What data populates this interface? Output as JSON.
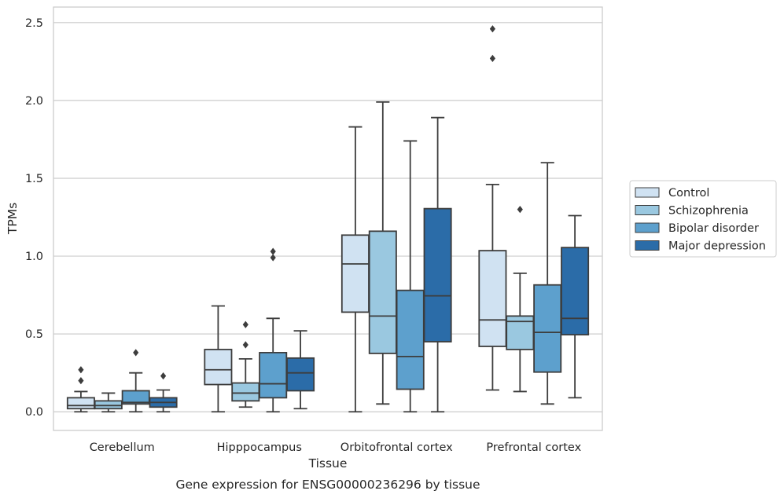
{
  "chart_data": {
    "type": "box",
    "title": "",
    "caption": "Gene expression for ENSG00000236296 by tissue",
    "xlabel": "Tissue",
    "ylabel": "TPMs",
    "ylim": [
      -0.12,
      2.6
    ],
    "yticks": [
      0.0,
      0.5,
      1.0,
      1.5,
      2.0,
      2.5
    ],
    "ytick_labels": [
      "0.0",
      "0.5",
      "1.0",
      "1.5",
      "2.0",
      "2.5"
    ],
    "grid": "horizontal",
    "legend_position": "right",
    "categories": [
      "Cerebellum",
      "Hipppocampus",
      "Orbitofrontal cortex",
      "Prefrontal cortex"
    ],
    "series": [
      {
        "name": "Control",
        "color": "#d0e2f2",
        "boxes": [
          {
            "whislo": 0.0,
            "q1": 0.02,
            "med": 0.04,
            "q3": 0.09,
            "whishi": 0.13,
            "fliers": [
              0.2,
              0.27
            ]
          },
          {
            "whislo": 0.0,
            "q1": 0.175,
            "med": 0.27,
            "q3": 0.4,
            "whishi": 0.68,
            "fliers": []
          },
          {
            "whislo": 0.0,
            "q1": 0.64,
            "med": 0.95,
            "q3": 1.135,
            "whishi": 1.83,
            "fliers": []
          },
          {
            "whislo": 0.14,
            "q1": 0.42,
            "med": 0.59,
            "q3": 1.035,
            "whishi": 1.46,
            "fliers": [
              2.27,
              2.46
            ]
          }
        ]
      },
      {
        "name": "Schizophrenia",
        "color": "#9ac8e0",
        "boxes": [
          {
            "whislo": 0.0,
            "q1": 0.02,
            "med": 0.04,
            "q3": 0.07,
            "whishi": 0.12,
            "fliers": []
          },
          {
            "whislo": 0.03,
            "q1": 0.07,
            "med": 0.12,
            "q3": 0.185,
            "whishi": 0.34,
            "fliers": [
              0.43,
              0.56
            ]
          },
          {
            "whislo": 0.05,
            "q1": 0.375,
            "med": 0.615,
            "q3": 1.16,
            "whishi": 1.99,
            "fliers": []
          },
          {
            "whislo": 0.13,
            "q1": 0.4,
            "med": 0.58,
            "q3": 0.615,
            "whishi": 0.89,
            "fliers": [
              1.3
            ]
          }
        ]
      },
      {
        "name": "Bipolar disorder",
        "color": "#5da0cd",
        "boxes": [
          {
            "whislo": 0.0,
            "q1": 0.05,
            "med": 0.06,
            "q3": 0.135,
            "whishi": 0.25,
            "fliers": [
              0.38
            ]
          },
          {
            "whislo": 0.0,
            "q1": 0.09,
            "med": 0.18,
            "q3": 0.38,
            "whishi": 0.6,
            "fliers": [
              0.99,
              1.03
            ]
          },
          {
            "whislo": 0.0,
            "q1": 0.145,
            "med": 0.355,
            "q3": 0.78,
            "whishi": 1.74,
            "fliers": []
          },
          {
            "whislo": 0.05,
            "q1": 0.255,
            "med": 0.51,
            "q3": 0.815,
            "whishi": 1.6,
            "fliers": []
          }
        ]
      },
      {
        "name": "Major depression",
        "color": "#2b6ca8",
        "boxes": [
          {
            "whislo": 0.0,
            "q1": 0.03,
            "med": 0.06,
            "q3": 0.09,
            "whishi": 0.14,
            "fliers": [
              0.23
            ]
          },
          {
            "whislo": 0.02,
            "q1": 0.135,
            "med": 0.25,
            "q3": 0.345,
            "whishi": 0.52,
            "fliers": []
          },
          {
            "whislo": 0.0,
            "q1": 0.45,
            "med": 0.745,
            "q3": 1.305,
            "whishi": 1.89,
            "fliers": []
          },
          {
            "whislo": 0.09,
            "q1": 0.495,
            "med": 0.6,
            "q3": 1.055,
            "whishi": 1.26,
            "fliers": []
          }
        ]
      }
    ]
  }
}
